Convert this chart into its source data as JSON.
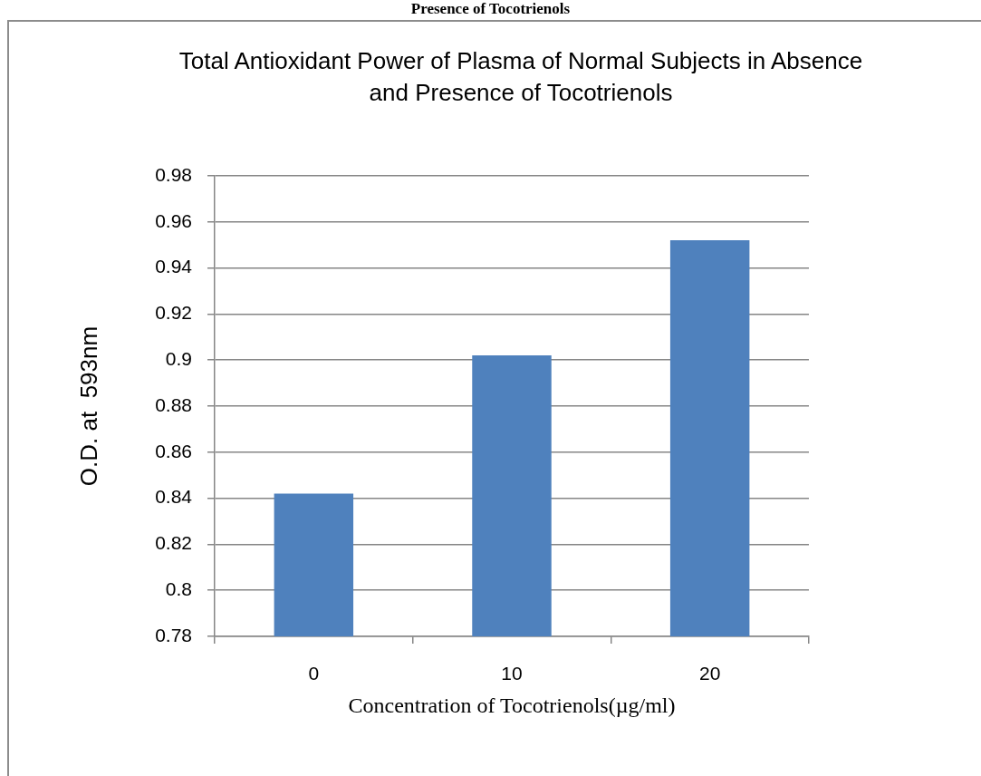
{
  "chart_data": {
    "type": "bar",
    "title": "Total Antioxidant Power of Plasma of Normal Subjects in Absence and Presence of Tocotrienols",
    "xlabel": "Concentration of Tocotrienols(µg/ml)",
    "ylabel": "O.D. at  593nm",
    "categories": [
      "0",
      "10",
      "20"
    ],
    "values": [
      0.842,
      0.902,
      0.952
    ],
    "color": "#4f81bd",
    "ylim": [
      0.78,
      0.98
    ],
    "yticks": [
      0.78,
      0.8,
      0.82,
      0.84,
      0.86,
      0.88,
      0.9,
      0.92,
      0.94,
      0.96,
      0.98
    ],
    "grid": "y",
    "annotations": [
      "Presence of Tocotrienols"
    ]
  }
}
